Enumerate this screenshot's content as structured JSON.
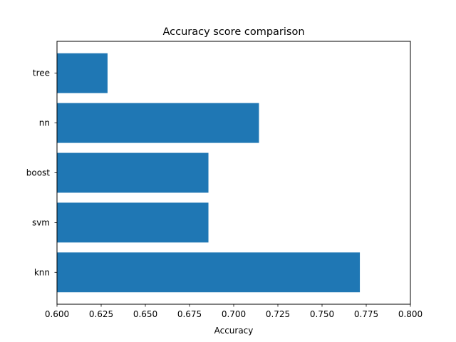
{
  "chart_data": {
    "type": "bar",
    "orientation": "horizontal",
    "title": "Accuracy score comparison",
    "xlabel": "Accuracy",
    "ylabel": "",
    "categories": [
      "knn",
      "svm",
      "boost",
      "nn",
      "tree"
    ],
    "values": [
      0.7714,
      0.6857,
      0.6857,
      0.7143,
      0.6286
    ],
    "xlim": [
      0.6,
      0.8
    ],
    "xticks": [
      "0.600",
      "0.625",
      "0.650",
      "0.675",
      "0.700",
      "0.725",
      "0.750",
      "0.775",
      "0.800"
    ],
    "bar_color": "#1f77b4",
    "grid": false
  }
}
